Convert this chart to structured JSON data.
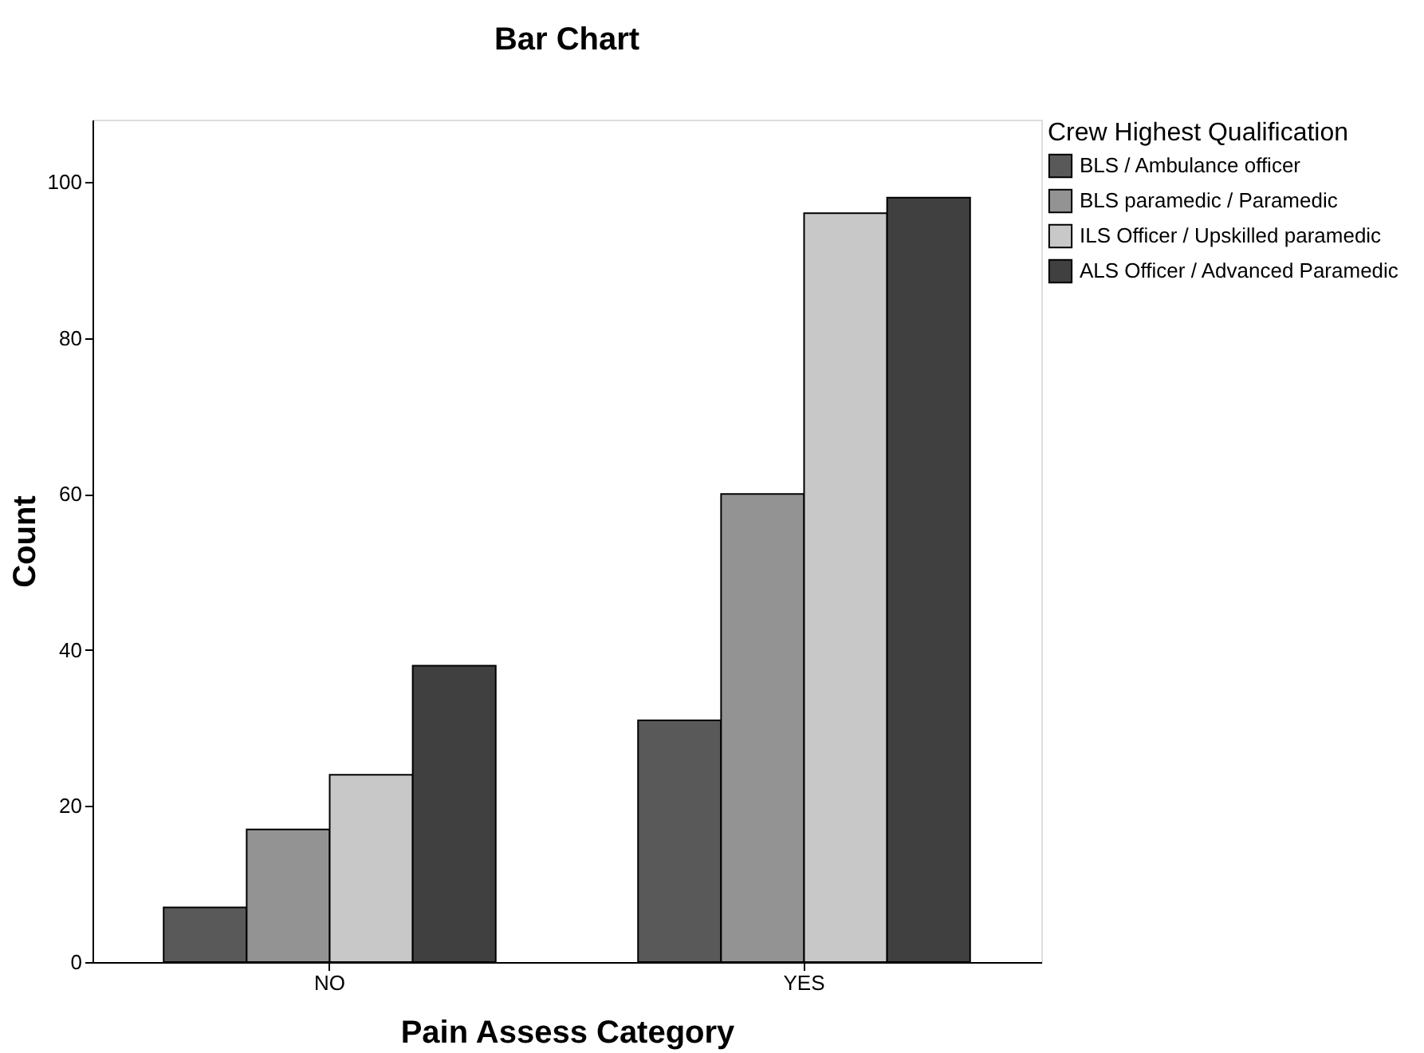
{
  "chart_data": {
    "type": "bar",
    "title": "Bar Chart",
    "xlabel": "Pain Assess Category",
    "ylabel": "Count",
    "legend_title": "Crew Highest Qualification",
    "categories": [
      "NO",
      "YES"
    ],
    "series": [
      {
        "name": "BLS / Ambulance officer",
        "color": "#595959",
        "values": [
          7,
          31
        ]
      },
      {
        "name": "BLS paramedic / Paramedic",
        "color": "#939393",
        "values": [
          17,
          60
        ]
      },
      {
        "name": "ILS Officer / Upskilled paramedic",
        "color": "#c8c8c8",
        "values": [
          24,
          96
        ]
      },
      {
        "name": "ALS Officer / Advanced Paramedic",
        "color": "#404040",
        "values": [
          38,
          98
        ]
      }
    ],
    "ylim": [
      0,
      108
    ],
    "yticks": [
      0,
      20,
      40,
      60,
      80,
      100
    ],
    "legend": "right"
  }
}
